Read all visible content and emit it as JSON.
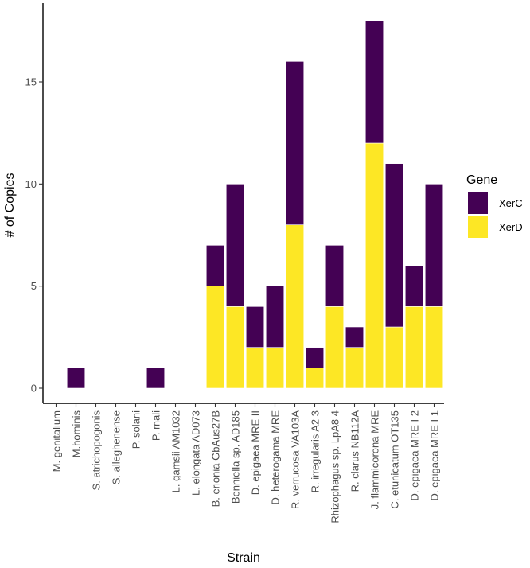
{
  "chart_data": {
    "type": "bar",
    "stacked": true,
    "title": "",
    "xlabel": "Strain",
    "ylabel": "# of Copies",
    "ylim": [
      0,
      18.5
    ],
    "yticks": [
      0,
      5,
      10,
      15
    ],
    "categories": [
      "M. genitalium",
      "M.hominis",
      "S. atrichopogonis",
      "S. alleghenense",
      "P. solani",
      "P. mali",
      "L. gamsii AM1032",
      "L. elongata AD073",
      "B. erionia GbAus27B",
      "Benniella sp. AD185",
      "D. epigaea MRE II",
      "D. heterogama MRE",
      "R. verrucosa VA103A",
      "R. irregularis A2 3",
      "Rhizophagus sp. LpA8 4",
      "R. clarus NB112A",
      "J. flammicorona MRE",
      "C. etunicatum OT135",
      "D. epigaea MRE I 2",
      "D. epigaea MRE I 1"
    ],
    "series": [
      {
        "name": "XerD",
        "color": "#FDE725",
        "values": [
          0,
          0,
          0,
          0,
          0,
          0,
          0,
          0,
          5,
          4,
          2,
          2,
          8,
          1,
          4,
          2,
          12,
          3,
          4,
          4
        ]
      },
      {
        "name": "XerC",
        "color": "#440154",
        "values": [
          0,
          1,
          0,
          0,
          0,
          1,
          0,
          0,
          2,
          6,
          2,
          3,
          8,
          1,
          3,
          1,
          6,
          8,
          2,
          6
        ]
      }
    ],
    "legend": {
      "title": "Gene",
      "position": "right",
      "entries": [
        {
          "label": "XerC",
          "color": "#440154"
        },
        {
          "label": "XerD",
          "color": "#FDE725"
        }
      ]
    }
  }
}
